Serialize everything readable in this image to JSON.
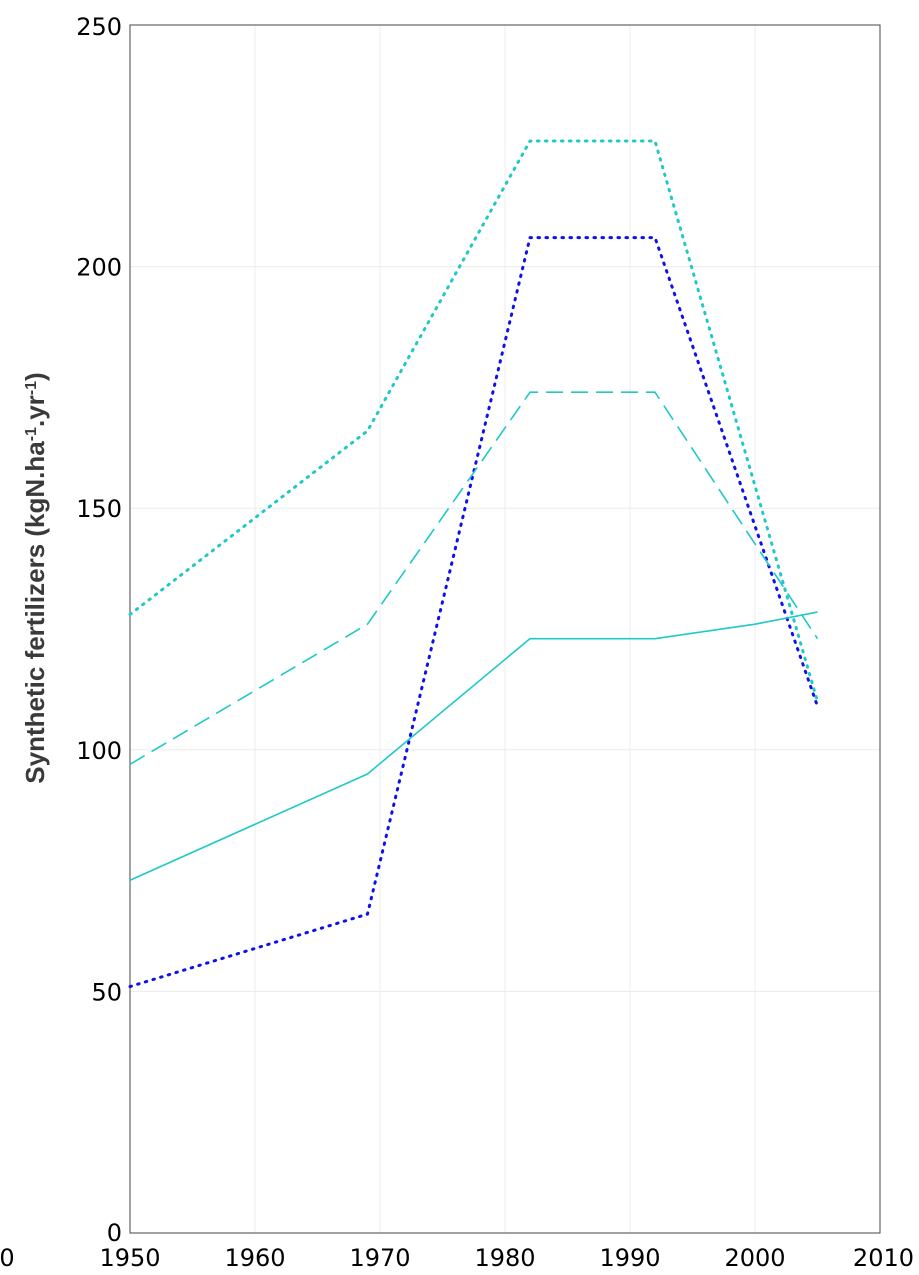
{
  "chart_data": {
    "type": "line",
    "title": "",
    "xlabel": "",
    "ylabel": {
      "text": "Synthetic fertilizers (kgN.ha",
      "sup1": "-1",
      "mid": ".yr",
      "sup2": "-1",
      "end": ")"
    },
    "xlim": [
      1950,
      2010
    ],
    "ylim": [
      0,
      250
    ],
    "xticks": [
      1950,
      1960,
      1970,
      1980,
      1990,
      2000,
      2010
    ],
    "xtick_labels": [
      "1950",
      "1960",
      "1970",
      "1980",
      "1990",
      "2000",
      "2010"
    ],
    "partial_left_tick_label": "0",
    "yticks": [
      0,
      50,
      100,
      150,
      200,
      250
    ],
    "ytick_labels": [
      "0",
      "50",
      "100",
      "150",
      "200",
      "250"
    ],
    "grid": true,
    "legend": "none",
    "series": [
      {
        "color": "#20c8c8",
        "style": "dotted",
        "x": [
          1950,
          1969,
          1982,
          1992,
          2005
        ],
        "y": [
          128,
          166,
          226,
          226,
          110
        ]
      },
      {
        "color": "#1010e8",
        "style": "dotted",
        "x": [
          1950,
          1969,
          1982,
          1992,
          2005
        ],
        "y": [
          51,
          66,
          206,
          206,
          109
        ]
      },
      {
        "color": "#20c8c8",
        "style": "dashed",
        "x": [
          1950,
          1969,
          1982,
          1992,
          2005
        ],
        "y": [
          97,
          126,
          174,
          174,
          123
        ]
      },
      {
        "color": "#20c8c8",
        "style": "solid",
        "x": [
          1950,
          1969,
          1982,
          1992,
          2000,
          2005
        ],
        "y": [
          73,
          95,
          123,
          123,
          126,
          128.5
        ]
      }
    ]
  }
}
